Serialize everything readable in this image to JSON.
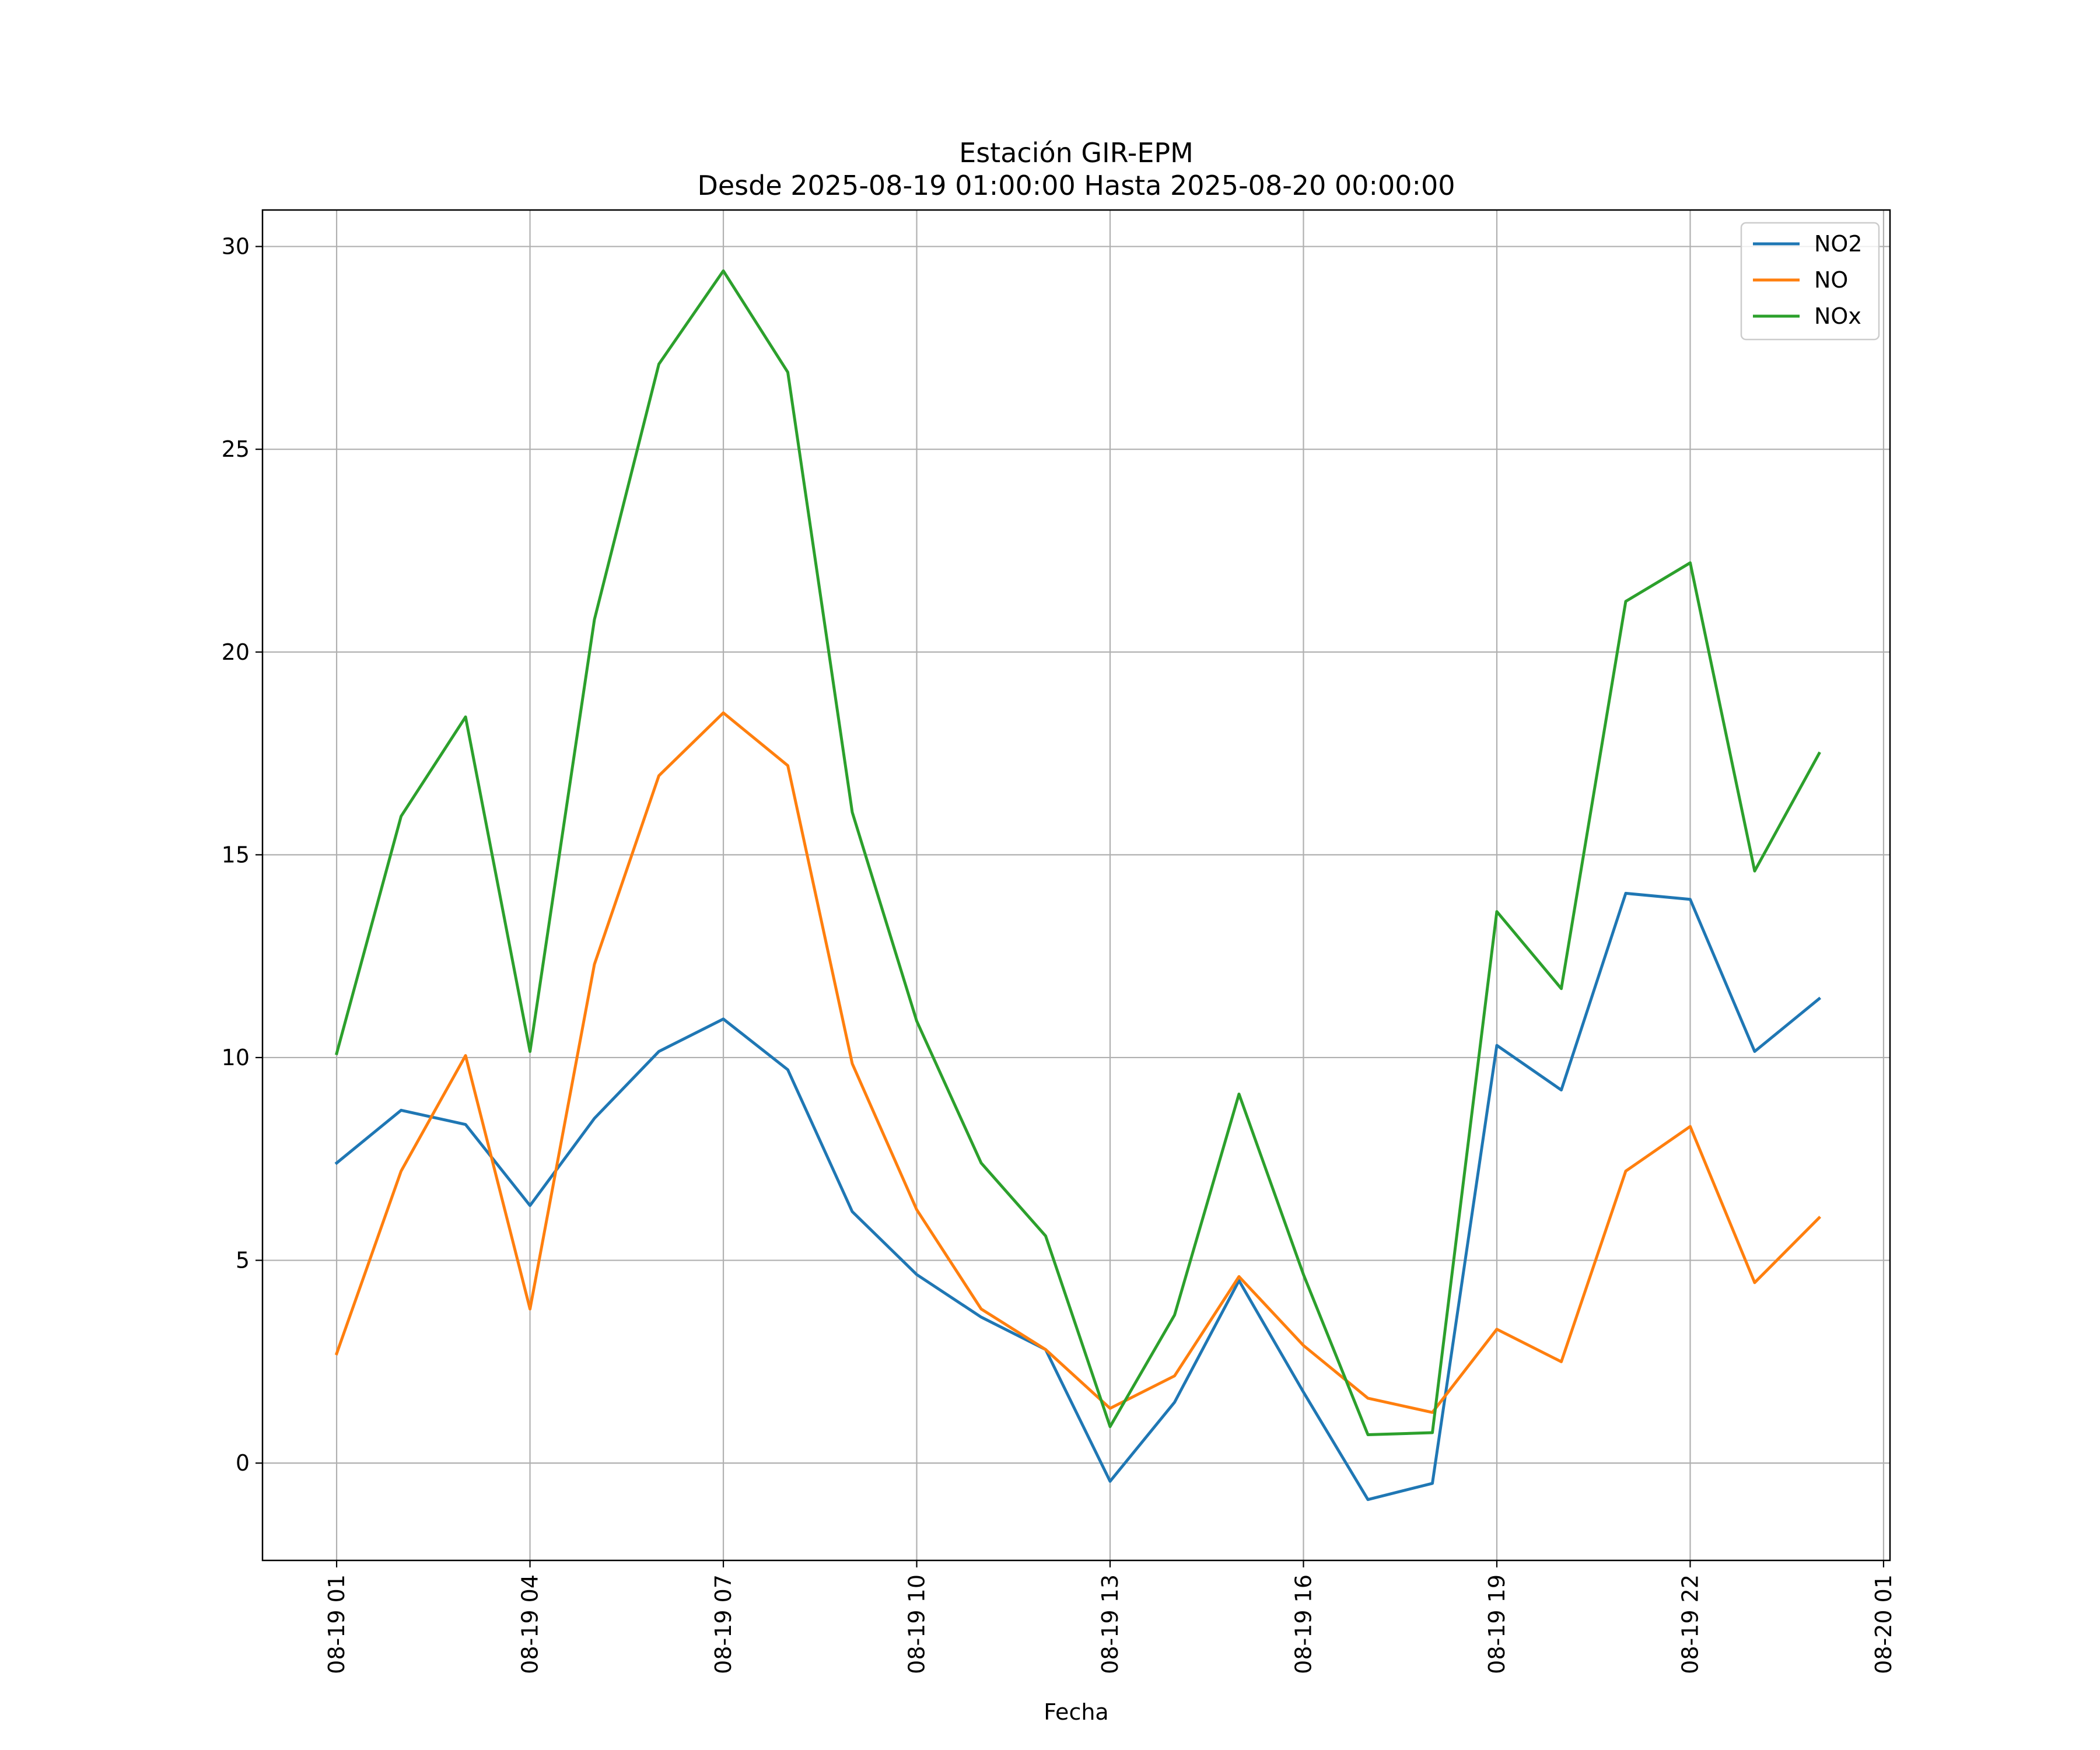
{
  "chart_data": {
    "type": "line",
    "title_line1": "Estación GIR-EPM",
    "title_line2": "Desde 2025-08-19 01:00:00 Hasta 2025-08-20 00:00:00",
    "xlabel": "Fecha",
    "ylabel": "",
    "ylim": [
      -2.4,
      30.9
    ],
    "yticks": [
      0,
      5,
      10,
      15,
      20,
      25,
      30
    ],
    "xlim": [
      "2025-08-18 23:51",
      "2025-08-20 01:06"
    ],
    "xticks": [
      {
        "date": "2025-08-19 01:00",
        "label": "08-19 01"
      },
      {
        "date": "2025-08-19 04:00",
        "label": "08-19 04"
      },
      {
        "date": "2025-08-19 07:00",
        "label": "08-19 07"
      },
      {
        "date": "2025-08-19 10:00",
        "label": "08-19 10"
      },
      {
        "date": "2025-08-19 13:00",
        "label": "08-19 13"
      },
      {
        "date": "2025-08-19 16:00",
        "label": "08-19 16"
      },
      {
        "date": "2025-08-19 19:00",
        "label": "08-19 19"
      },
      {
        "date": "2025-08-19 22:00",
        "label": "08-19 22"
      },
      {
        "date": "2025-08-20 01:00",
        "label": "08-20 01"
      }
    ],
    "x": [
      "2025-08-19 01:00",
      "2025-08-19 02:00",
      "2025-08-19 03:00",
      "2025-08-19 04:00",
      "2025-08-19 05:00",
      "2025-08-19 06:00",
      "2025-08-19 07:00",
      "2025-08-19 08:00",
      "2025-08-19 09:00",
      "2025-08-19 10:00",
      "2025-08-19 11:00",
      "2025-08-19 12:00",
      "2025-08-19 13:00",
      "2025-08-19 14:00",
      "2025-08-19 15:00",
      "2025-08-19 16:00",
      "2025-08-19 17:00",
      "2025-08-19 18:00",
      "2025-08-19 19:00",
      "2025-08-19 20:00",
      "2025-08-19 21:00",
      "2025-08-19 22:00",
      "2025-08-19 23:00",
      "2025-08-20 00:00"
    ],
    "series": [
      {
        "name": "NO2",
        "color": "#1f77b4",
        "values": [
          7.4,
          8.7,
          8.35,
          6.35,
          8.5,
          10.15,
          10.95,
          9.7,
          6.2,
          4.65,
          3.6,
          2.8,
          -0.45,
          1.5,
          4.5,
          1.75,
          -0.9,
          -0.5,
          10.3,
          9.2,
          14.05,
          13.9,
          10.15,
          11.45
        ]
      },
      {
        "name": "NO",
        "color": "#ff7f0e",
        "values": [
          2.7,
          7.2,
          10.05,
          3.8,
          12.3,
          16.95,
          18.5,
          17.2,
          9.85,
          6.25,
          3.8,
          2.8,
          1.35,
          2.15,
          4.6,
          2.9,
          1.6,
          1.25,
          3.3,
          2.5,
          7.2,
          8.3,
          4.45,
          6.05
        ]
      },
      {
        "name": "NOx",
        "color": "#2ca02c",
        "values": [
          10.1,
          15.95,
          18.4,
          10.15,
          20.8,
          27.1,
          29.4,
          26.9,
          16.05,
          10.9,
          7.4,
          5.6,
          0.9,
          3.65,
          9.1,
          4.65,
          0.7,
          0.75,
          13.6,
          11.7,
          21.25,
          22.2,
          14.6,
          17.5
        ]
      }
    ],
    "grid": true,
    "legend_position": "top-right"
  }
}
